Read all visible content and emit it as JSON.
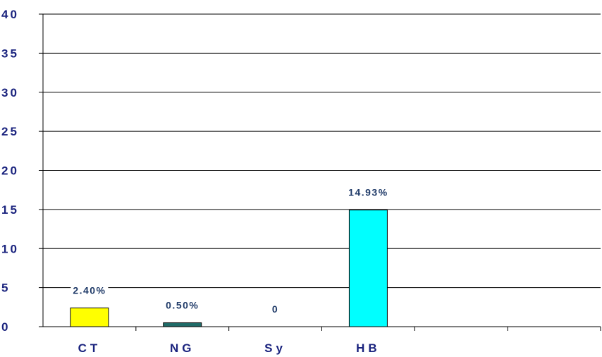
{
  "chart_data": {
    "type": "bar",
    "categories": [
      "CT",
      "NG",
      "Sy",
      "HB",
      "",
      ""
    ],
    "values": [
      2.4,
      0.5,
      0,
      14.93,
      null,
      null
    ],
    "data_labels": [
      "2.40%",
      "0.50%",
      "0",
      "14.93%",
      "",
      ""
    ],
    "bar_colors": [
      "#ffff00",
      "#1f6b68",
      "#ffffff",
      "#00ffff",
      "#ffffff",
      "#ffffff"
    ],
    "title": "",
    "xlabel": "",
    "ylabel": "",
    "ylim": [
      0,
      40
    ],
    "yticks": [
      0,
      5,
      10,
      15,
      20,
      25,
      30,
      35,
      40
    ],
    "ytick_labels": [
      "0",
      "5",
      "10",
      "15",
      "20",
      "25",
      "30",
      "35",
      "40"
    ],
    "grid": true,
    "legend": "none"
  }
}
